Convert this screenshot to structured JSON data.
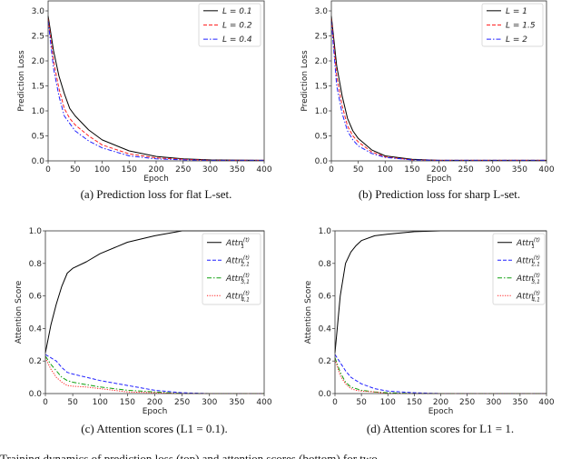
{
  "chart_data": [
    {
      "id": "a",
      "type": "line",
      "caption": "(a) Prediction loss for flat L-set.",
      "xlabel": "Epoch",
      "ylabel": "Prediction Loss",
      "xlim": [
        0,
        400
      ],
      "ylim": [
        0,
        3.2
      ],
      "xticks": [
        0,
        50,
        100,
        150,
        200,
        250,
        300,
        350,
        400
      ],
      "yticks": [
        "0.0",
        "0.5",
        "1.0",
        "1.5",
        "2.0",
        "2.5",
        "3.0"
      ],
      "legend_position": "top-right",
      "x": [
        0,
        10,
        20,
        30,
        40,
        50,
        75,
        100,
        150,
        200,
        250,
        300,
        400
      ],
      "series": [
        {
          "name": "L = 0.1",
          "color": "#000000",
          "dash": "solid",
          "values": [
            2.9,
            2.2,
            1.7,
            1.35,
            1.05,
            0.9,
            0.62,
            0.42,
            0.2,
            0.09,
            0.04,
            0.02,
            0.01
          ]
        },
        {
          "name": "L = 0.2",
          "color": "#ff2020",
          "dash": "dashed",
          "values": [
            2.85,
            2.0,
            1.45,
            1.05,
            0.85,
            0.72,
            0.5,
            0.32,
            0.14,
            0.06,
            0.03,
            0.01,
            0.01
          ]
        },
        {
          "name": "L = 0.4",
          "color": "#2020ff",
          "dash": "dashdot",
          "values": [
            2.8,
            1.85,
            1.3,
            0.9,
            0.75,
            0.6,
            0.4,
            0.26,
            0.1,
            0.04,
            0.02,
            0.01,
            0.01
          ]
        }
      ]
    },
    {
      "id": "b",
      "type": "line",
      "caption": "(b) Prediction loss for sharp L-set.",
      "xlabel": "Epoch",
      "ylabel": "Prediction Loss",
      "xlim": [
        0,
        400
      ],
      "ylim": [
        0,
        3.2
      ],
      "xticks": [
        0,
        50,
        100,
        150,
        200,
        250,
        300,
        350,
        400
      ],
      "yticks": [
        "0.0",
        "0.5",
        "1.0",
        "1.5",
        "2.0",
        "2.5",
        "3.0"
      ],
      "legend_position": "top-right",
      "x": [
        0,
        10,
        20,
        30,
        40,
        50,
        75,
        100,
        150,
        200,
        250,
        300,
        400
      ],
      "series": [
        {
          "name": "L = 1",
          "color": "#000000",
          "dash": "solid",
          "values": [
            2.9,
            1.9,
            1.3,
            0.85,
            0.6,
            0.45,
            0.22,
            0.1,
            0.03,
            0.01,
            0.01,
            0.01,
            0.01
          ]
        },
        {
          "name": "L = 1.5",
          "color": "#ff2020",
          "dash": "dashed",
          "values": [
            2.85,
            1.7,
            1.1,
            0.7,
            0.5,
            0.38,
            0.18,
            0.08,
            0.02,
            0.01,
            0.01,
            0.01,
            0.01
          ]
        },
        {
          "name": "L = 2",
          "color": "#2020ff",
          "dash": "dashdot",
          "values": [
            2.8,
            1.5,
            0.95,
            0.6,
            0.42,
            0.3,
            0.15,
            0.07,
            0.02,
            0.01,
            0.01,
            0.01,
            0.01
          ]
        }
      ]
    },
    {
      "id": "c",
      "type": "line",
      "caption": "(c) Attention scores (L1 = 0.1).",
      "xlabel": "Epoch",
      "ylabel": "Attention Score",
      "xlim": [
        0,
        400
      ],
      "ylim": [
        0,
        1.0
      ],
      "xticks": [
        0,
        50,
        100,
        150,
        200,
        250,
        300,
        350,
        400
      ],
      "yticks": [
        "0.0",
        "0.2",
        "0.4",
        "0.6",
        "0.8",
        "1.0"
      ],
      "legend_position": "top-right",
      "x": [
        0,
        10,
        20,
        30,
        40,
        50,
        75,
        100,
        150,
        200,
        250,
        300,
        400
      ],
      "series": [
        {
          "name": "Attn",
          "sup": "(t)",
          "sub": "1",
          "color": "#000000",
          "dash": "solid",
          "values": [
            0.25,
            0.42,
            0.55,
            0.66,
            0.74,
            0.77,
            0.81,
            0.86,
            0.93,
            0.97,
            1.0,
            1.0,
            1.0
          ]
        },
        {
          "name": "Attn",
          "sup": "(t)",
          "sub": "2,1",
          "color": "#2020ff",
          "dash": "dashed",
          "values": [
            0.24,
            0.22,
            0.2,
            0.16,
            0.13,
            0.12,
            0.1,
            0.08,
            0.05,
            0.02,
            0.005,
            0,
            0
          ]
        },
        {
          "name": "Attn",
          "sup": "(t)",
          "sub": "3,1",
          "color": "#10a010",
          "dash": "dashdot",
          "values": [
            0.23,
            0.18,
            0.14,
            0.1,
            0.08,
            0.07,
            0.055,
            0.04,
            0.02,
            0.01,
            0,
            0,
            0
          ]
        },
        {
          "name": "Attn",
          "sup": "(t)",
          "sub": "4,1",
          "color": "#ff2020",
          "dash": "dotted",
          "values": [
            0.22,
            0.15,
            0.1,
            0.07,
            0.05,
            0.045,
            0.04,
            0.03,
            0.01,
            0.005,
            0,
            0,
            0
          ]
        }
      ]
    },
    {
      "id": "d",
      "type": "line",
      "caption": "(d) Attention scores for L1 = 1.",
      "xlabel": "Epoch",
      "ylabel": "Attention Score",
      "xlim": [
        0,
        400
      ],
      "ylim": [
        0,
        1.0
      ],
      "xticks": [
        0,
        50,
        100,
        150,
        200,
        250,
        300,
        350,
        400
      ],
      "yticks": [
        "0.0",
        "0.2",
        "0.4",
        "0.6",
        "0.8",
        "1.0"
      ],
      "legend_position": "top-right",
      "x": [
        0,
        10,
        20,
        30,
        40,
        50,
        75,
        100,
        150,
        200,
        250,
        300,
        400
      ],
      "series": [
        {
          "name": "Attn",
          "sup": "(t)",
          "sub": "1",
          "color": "#000000",
          "dash": "solid",
          "values": [
            0.25,
            0.6,
            0.8,
            0.87,
            0.91,
            0.94,
            0.97,
            0.98,
            0.995,
            1.0,
            1.0,
            1.0,
            1.0
          ]
        },
        {
          "name": "Attn",
          "sup": "(t)",
          "sub": "2,1",
          "color": "#2020ff",
          "dash": "dashed",
          "values": [
            0.24,
            0.19,
            0.14,
            0.1,
            0.08,
            0.06,
            0.03,
            0.015,
            0.005,
            0,
            0,
            0,
            0
          ]
        },
        {
          "name": "Attn",
          "sup": "(t)",
          "sub": "3,1",
          "color": "#10a010",
          "dash": "dashdot",
          "values": [
            0.22,
            0.13,
            0.07,
            0.04,
            0.03,
            0.02,
            0.01,
            0.005,
            0,
            0,
            0,
            0,
            0
          ]
        },
        {
          "name": "Attn",
          "sup": "(t)",
          "sub": "4,1",
          "color": "#ff2020",
          "dash": "dotted",
          "values": [
            0.21,
            0.11,
            0.06,
            0.03,
            0.02,
            0.015,
            0.01,
            0,
            0,
            0,
            0,
            0,
            0
          ]
        }
      ]
    }
  ],
  "figure_caption": "Training dynamics of prediction loss (top) and attention scores (bottom) for two"
}
